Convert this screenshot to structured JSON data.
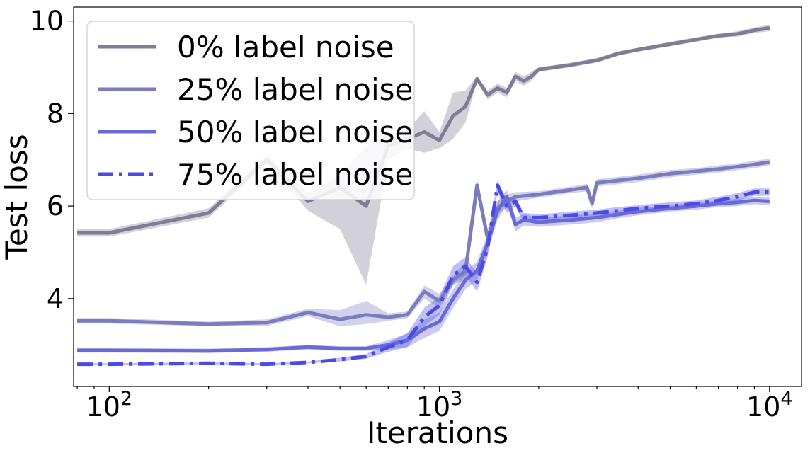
{
  "chart_data": {
    "type": "line",
    "title": "",
    "xlabel": "Iterations",
    "ylabel": "Test loss",
    "xscale": "log",
    "xlim": [
      78,
      12500
    ],
    "ylim": [
      2.1,
      10.3
    ],
    "grid": false,
    "legend_position": "top-left",
    "x_ticks": [
      {
        "value": 100,
        "base": "10",
        "exp": "2"
      },
      {
        "value": 1000,
        "base": "10",
        "exp": "3"
      },
      {
        "value": 10000,
        "base": "10",
        "exp": "4"
      }
    ],
    "y_ticks": [
      4,
      6,
      8,
      10
    ],
    "series": [
      {
        "name": "0% label noise",
        "color": "#7f7c96",
        "style": "solid",
        "x": [
          80,
          100,
          200,
          300,
          400,
          500,
          600,
          700,
          800,
          900,
          1000,
          1100,
          1200,
          1300,
          1400,
          1500,
          1600,
          1700,
          1800,
          1900,
          2000,
          2500,
          3000,
          3500,
          4000,
          5000,
          6000,
          7000,
          8000,
          9000,
          10000
        ],
        "y": [
          5.42,
          5.42,
          5.85,
          7.0,
          6.1,
          6.4,
          6.0,
          7.3,
          7.45,
          7.6,
          7.42,
          7.95,
          8.15,
          8.75,
          8.4,
          8.55,
          8.45,
          8.8,
          8.7,
          8.8,
          8.95,
          9.05,
          9.15,
          9.3,
          9.38,
          9.5,
          9.6,
          9.68,
          9.72,
          9.8,
          9.85
        ],
        "upper": [
          5.5,
          5.5,
          5.95,
          7.1,
          6.3,
          6.65,
          7.3,
          7.55,
          7.65,
          8.05,
          7.6,
          8.45,
          8.5,
          8.8,
          8.5,
          8.65,
          8.55,
          8.9,
          8.8,
          8.9,
          9.0,
          9.1,
          9.2,
          9.35,
          9.42,
          9.55,
          9.65,
          9.72,
          9.78,
          9.86,
          9.92
        ],
        "lower": [
          5.34,
          5.34,
          5.75,
          6.9,
          5.9,
          5.5,
          4.3,
          7.0,
          7.25,
          7.15,
          7.25,
          7.45,
          7.8,
          8.7,
          8.3,
          8.45,
          8.35,
          8.7,
          8.6,
          8.7,
          8.9,
          9.0,
          9.1,
          9.25,
          9.34,
          9.45,
          9.55,
          9.64,
          9.66,
          9.74,
          9.78
        ]
      },
      {
        "name": "25% label noise",
        "color": "#7b7bc0",
        "style": "solid",
        "x": [
          80,
          100,
          200,
          300,
          400,
          500,
          600,
          700,
          800,
          900,
          1000,
          1100,
          1200,
          1300,
          1400,
          1500,
          1600,
          1700,
          2000,
          2500,
          2800,
          2900,
          3000,
          4000,
          5000,
          6000,
          7000,
          8000,
          9000,
          10000
        ],
        "y": [
          3.52,
          3.52,
          3.45,
          3.48,
          3.7,
          3.55,
          3.65,
          3.6,
          3.65,
          4.15,
          3.95,
          4.4,
          4.6,
          6.45,
          5.3,
          5.95,
          6.1,
          6.2,
          6.25,
          6.35,
          6.4,
          6.05,
          6.5,
          6.6,
          6.7,
          6.75,
          6.8,
          6.85,
          6.9,
          6.95
        ],
        "upper": [
          3.58,
          3.58,
          3.5,
          3.55,
          3.78,
          3.75,
          3.95,
          3.68,
          3.72,
          4.28,
          4.1,
          4.5,
          4.8,
          6.6,
          5.5,
          6.1,
          6.25,
          6.3,
          6.32,
          6.42,
          6.48,
          6.15,
          6.58,
          6.68,
          6.78,
          6.82,
          6.88,
          6.92,
          6.98,
          7.02
        ],
        "lower": [
          3.46,
          3.46,
          3.4,
          3.41,
          3.62,
          3.4,
          3.45,
          3.52,
          3.58,
          4.0,
          3.8,
          4.3,
          4.4,
          6.3,
          5.1,
          5.8,
          5.95,
          6.1,
          6.18,
          6.28,
          6.32,
          5.95,
          6.42,
          6.52,
          6.62,
          6.68,
          6.72,
          6.78,
          6.82,
          6.88
        ]
      },
      {
        "name": "50% label noise",
        "color": "#6a6ad6",
        "style": "solid",
        "x": [
          80,
          100,
          200,
          300,
          400,
          500,
          600,
          700,
          800,
          900,
          1000,
          1100,
          1200,
          1300,
          1400,
          1500,
          1600,
          1700,
          1800,
          2000,
          2500,
          3000,
          3500,
          4000,
          5000,
          6000,
          7000,
          8000,
          9000,
          10000
        ],
        "y": [
          2.88,
          2.88,
          2.87,
          2.9,
          2.95,
          2.92,
          2.92,
          3.0,
          3.1,
          3.35,
          3.5,
          4.0,
          4.4,
          4.6,
          5.2,
          5.9,
          6.2,
          5.6,
          5.7,
          5.65,
          5.7,
          5.75,
          5.82,
          5.88,
          5.95,
          6.0,
          6.05,
          6.08,
          6.12,
          6.1
        ],
        "upper": [
          2.93,
          2.93,
          2.92,
          2.95,
          3.0,
          2.97,
          2.97,
          3.1,
          3.25,
          3.55,
          3.7,
          4.2,
          4.6,
          4.8,
          5.4,
          6.1,
          6.35,
          5.75,
          5.82,
          5.75,
          5.8,
          5.85,
          5.9,
          5.96,
          6.02,
          6.08,
          6.12,
          6.16,
          6.2,
          6.18
        ],
        "lower": [
          2.83,
          2.83,
          2.82,
          2.85,
          2.9,
          2.87,
          2.87,
          2.9,
          2.95,
          3.15,
          3.3,
          3.8,
          4.2,
          4.4,
          5.0,
          5.7,
          6.05,
          5.45,
          5.58,
          5.55,
          5.6,
          5.65,
          5.74,
          5.8,
          5.88,
          5.92,
          5.98,
          6.0,
          6.04,
          6.02
        ]
      },
      {
        "name": "75% label noise",
        "color": "#4b4ae8",
        "style": "dashdot",
        "x": [
          80,
          100,
          200,
          300,
          400,
          500,
          600,
          700,
          800,
          900,
          1000,
          1100,
          1200,
          1300,
          1400,
          1500,
          1600,
          1700,
          1800,
          2000,
          2500,
          3000,
          3500,
          4000,
          5000,
          6000,
          7000,
          8000,
          9000,
          10000
        ],
        "y": [
          2.58,
          2.58,
          2.6,
          2.58,
          2.62,
          2.68,
          2.75,
          2.95,
          3.1,
          3.6,
          3.85,
          4.5,
          4.7,
          4.35,
          5.1,
          6.45,
          6.0,
          6.1,
          5.75,
          5.75,
          5.8,
          5.85,
          5.9,
          5.95,
          6.0,
          6.05,
          6.12,
          6.2,
          6.3,
          6.3
        ],
        "upper": [
          2.6,
          2.6,
          2.62,
          2.6,
          2.64,
          2.72,
          2.8,
          3.05,
          3.25,
          3.8,
          4.05,
          4.7,
          4.9,
          4.55,
          5.3,
          6.55,
          6.15,
          6.2,
          5.85,
          5.82,
          5.88,
          5.92,
          5.98,
          6.02,
          6.08,
          6.12,
          6.2,
          6.28,
          6.38,
          6.38
        ],
        "lower": [
          2.56,
          2.56,
          2.58,
          2.56,
          2.6,
          2.64,
          2.7,
          2.85,
          2.95,
          3.4,
          3.65,
          4.3,
          4.5,
          4.15,
          4.9,
          6.3,
          5.85,
          6.0,
          5.65,
          5.68,
          5.72,
          5.78,
          5.82,
          5.88,
          5.92,
          5.98,
          6.04,
          6.12,
          6.22,
          6.22
        ]
      }
    ]
  }
}
